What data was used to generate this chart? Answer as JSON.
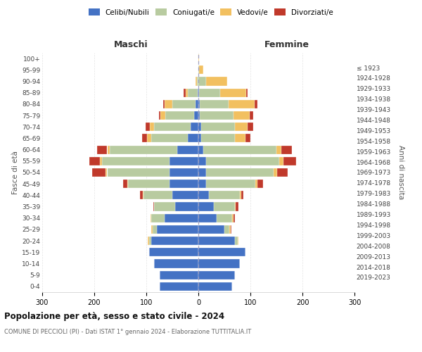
{
  "age_groups": [
    "0-4",
    "5-9",
    "10-14",
    "15-19",
    "20-24",
    "25-29",
    "30-34",
    "35-39",
    "40-44",
    "45-49",
    "50-54",
    "55-59",
    "60-64",
    "65-69",
    "70-74",
    "75-79",
    "80-84",
    "85-89",
    "90-94",
    "95-99",
    "100+"
  ],
  "birth_years": [
    "2019-2023",
    "2014-2018",
    "2009-2013",
    "2004-2008",
    "1999-2003",
    "1994-1998",
    "1989-1993",
    "1984-1988",
    "1979-1983",
    "1974-1978",
    "1969-1973",
    "1964-1968",
    "1959-1963",
    "1954-1958",
    "1949-1953",
    "1944-1948",
    "1939-1943",
    "1934-1938",
    "1929-1933",
    "1924-1928",
    "≤ 1923"
  ],
  "colors": {
    "celibe": "#4472C4",
    "coniugato": "#B8CBA0",
    "vedovo": "#F2C060",
    "divorziato": "#C0392B"
  },
  "maschi": {
    "celibe": [
      75,
      75,
      85,
      95,
      90,
      80,
      65,
      45,
      50,
      55,
      55,
      55,
      40,
      20,
      15,
      8,
      5,
      2,
      0,
      0,
      0
    ],
    "coniugato": [
      0,
      0,
      0,
      0,
      5,
      8,
      25,
      40,
      55,
      80,
      120,
      130,
      130,
      70,
      70,
      55,
      45,
      18,
      3,
      0,
      0
    ],
    "vedovo": [
      0,
      0,
      0,
      0,
      2,
      2,
      2,
      0,
      2,
      2,
      4,
      4,
      5,
      8,
      8,
      10,
      15,
      5,
      2,
      0,
      0
    ],
    "divorziato": [
      0,
      0,
      0,
      0,
      0,
      0,
      0,
      2,
      5,
      8,
      25,
      20,
      20,
      10,
      8,
      3,
      3,
      3,
      0,
      0,
      0
    ]
  },
  "femmine": {
    "nubile": [
      65,
      70,
      80,
      90,
      70,
      50,
      35,
      30,
      20,
      15,
      15,
      15,
      10,
      5,
      5,
      3,
      3,
      2,
      0,
      0,
      0
    ],
    "coniugata": [
      0,
      0,
      0,
      0,
      5,
      10,
      30,
      40,
      60,
      95,
      130,
      140,
      140,
      65,
      65,
      65,
      55,
      40,
      15,
      2,
      0
    ],
    "vedova": [
      0,
      0,
      0,
      0,
      2,
      2,
      2,
      2,
      2,
      4,
      6,
      8,
      10,
      20,
      25,
      30,
      50,
      50,
      40,
      8,
      1
    ],
    "divorziata": [
      0,
      0,
      0,
      0,
      0,
      2,
      3,
      5,
      5,
      10,
      20,
      25,
      20,
      10,
      10,
      8,
      5,
      3,
      0,
      0,
      0
    ]
  },
  "title": "Popolazione per età, sesso e stato civile - 2024",
  "subtitle": "COMUNE DI PECCIOLI (PI) - Dati ISTAT 1° gennaio 2024 - Elaborazione TUTTITALIA.IT",
  "label_maschi": "Maschi",
  "label_femmine": "Femmine",
  "ylabel_left": "Fasce di età",
  "ylabel_right": "Anni di nascita",
  "xlim": 300,
  "legend_labels": [
    "Celibi/Nubili",
    "Coniugati/e",
    "Vedovi/e",
    "Divorziati/e"
  ],
  "xticks": [
    -300,
    -200,
    -100,
    0,
    100,
    200,
    300
  ]
}
